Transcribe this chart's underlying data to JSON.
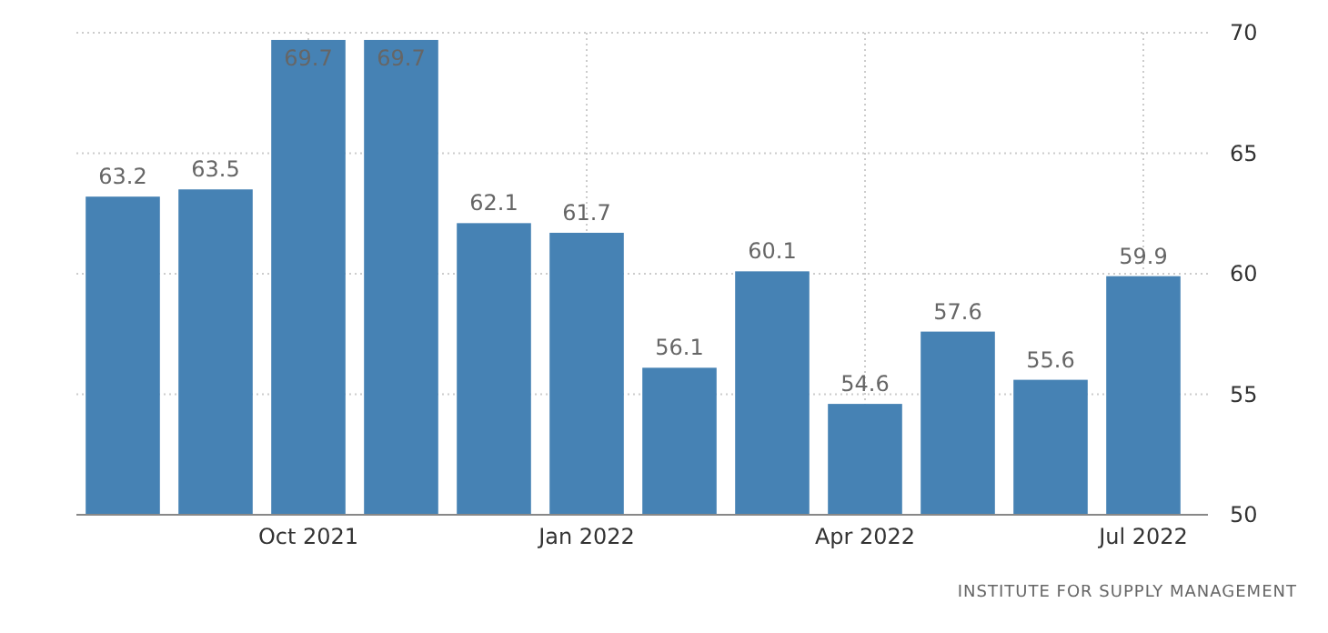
{
  "chart_data": {
    "type": "bar",
    "categories": [
      null,
      null,
      "Oct 2021",
      null,
      null,
      "Jan 2022",
      null,
      null,
      "Apr 2022",
      null,
      null,
      "Jul 2022"
    ],
    "values": [
      63.2,
      63.5,
      69.7,
      69.7,
      62.1,
      61.7,
      56.1,
      60.1,
      54.6,
      57.6,
      55.6,
      59.9
    ],
    "color": "#4682b4",
    "ylim": [
      50,
      70
    ],
    "yticks": [
      50,
      55,
      60,
      65,
      70
    ],
    "grid": true,
    "data_labels": true,
    "annotations": [
      "INSTITUTE FOR SUPPLY MANAGEMENT"
    ]
  }
}
